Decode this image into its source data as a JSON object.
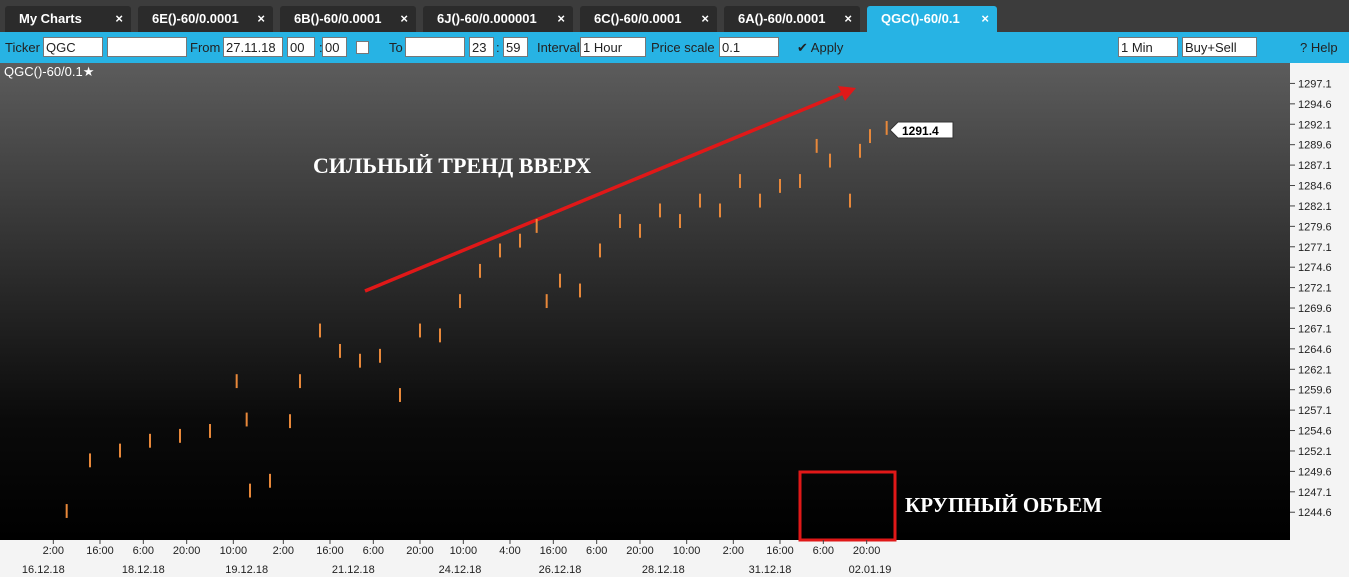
{
  "tabs": [
    "My Charts",
    "6E()-60/0.0001",
    "6B()-60/0.0001",
    "6J()-60/0.000001",
    "6C()-60/0.0001",
    "6A()-60/0.0001",
    "QGC()-60/0.1"
  ],
  "toolbar": {
    "ticker_label": "Ticker",
    "ticker": "QGC",
    "from_label": "From",
    "from_date": "27.11.18",
    "from_hour": "00",
    "from_min": "00",
    "sep": ":",
    "to_label": "To",
    "to_hour": "23",
    "to_min": "59",
    "interval_label": "Interval",
    "interval": "1 Hour",
    "price_scale_label": "Price scale",
    "price_scale": "0.1",
    "apply": "Apply",
    "timeframe": "1 Min",
    "side": "Buy+Sell",
    "help": "Help"
  },
  "chart_data": {
    "type": "ohlc",
    "title": "QGC()-60/0.1★",
    "color": "#e8883a",
    "x": [
      20,
      27,
      36,
      45,
      54,
      63,
      71,
      74,
      75,
      81,
      87,
      90,
      96,
      102,
      108,
      114,
      120,
      126,
      132,
      138,
      144,
      150,
      156,
      161,
      164,
      168,
      174,
      180,
      186,
      192,
      198,
      204,
      210,
      216,
      222,
      228,
      234,
      240,
      245,
      249,
      255,
      258,
      261,
      266
    ],
    "high": [
      1245.6,
      1251.8,
      1253,
      1254.2,
      1254.8,
      1255.4,
      1261.5,
      1256.8,
      1248.1,
      1249.3,
      1256.6,
      1261.5,
      1267.7,
      1265.2,
      1264,
      1264.6,
      1259.8,
      1267.7,
      1267.1,
      1271.3,
      1275,
      1277.5,
      1278.7,
      1280.5,
      1271.3,
      1273.8,
      1272.6,
      1277.5,
      1281.1,
      1279.9,
      1282.4,
      1281.1,
      1283.6,
      1282.4,
      1286,
      1283.6,
      1285.4,
      1286,
      1290.3,
      1288.5,
      1283.6,
      1289.7,
      1291.5,
      1292.5
    ],
    "low": [
      1243.9,
      1250.1,
      1251.3,
      1252.5,
      1253.1,
      1253.7,
      1259.8,
      1255.1,
      1246.4,
      1247.6,
      1254.9,
      1259.8,
      1266,
      1263.5,
      1262.3,
      1262.9,
      1258.1,
      1266,
      1265.4,
      1269.6,
      1273.3,
      1275.8,
      1277,
      1278.8,
      1269.6,
      1272.1,
      1270.9,
      1275.8,
      1279.4,
      1278.2,
      1280.7,
      1279.4,
      1281.9,
      1280.7,
      1284.3,
      1281.9,
      1283.7,
      1284.3,
      1288.6,
      1286.8,
      1281.9,
      1288,
      1289.8,
      1290.8
    ],
    "last_price": 1291.4,
    "xlim": [
      0,
      387
    ],
    "ylim": [
      1241.2,
      1299.6
    ],
    "yticks": [
      1297.1,
      1294.6,
      1292.1,
      1289.6,
      1287.1,
      1284.6,
      1282.1,
      1279.6,
      1277.1,
      1274.6,
      1272.1,
      1269.6,
      1267.1,
      1264.6,
      1262.1,
      1259.6,
      1257.1,
      1254.6,
      1252.1,
      1249.6,
      1247.1,
      1244.6
    ],
    "xticks": [
      {
        "value": 16,
        "label": "2:00"
      },
      {
        "value": 30,
        "label": "16:00"
      },
      {
        "value": 43,
        "label": "6:00"
      },
      {
        "value": 56,
        "label": "20:00"
      },
      {
        "value": 70,
        "label": "10:00"
      },
      {
        "value": 85,
        "label": "2:00"
      },
      {
        "value": 99,
        "label": "16:00"
      },
      {
        "value": 112,
        "label": "6:00"
      },
      {
        "value": 126,
        "label": "20:00"
      },
      {
        "value": 139,
        "label": "10:00"
      },
      {
        "value": 153,
        "label": "4:00"
      },
      {
        "value": 166,
        "label": "16:00"
      },
      {
        "value": 179,
        "label": "6:00"
      },
      {
        "value": 192,
        "label": "20:00"
      },
      {
        "value": 206,
        "label": "10:00"
      },
      {
        "value": 220,
        "label": "2:00"
      },
      {
        "value": 234,
        "label": "16:00"
      },
      {
        "value": 247,
        "label": "6:00"
      },
      {
        "value": 260,
        "label": "20:00"
      }
    ],
    "date_ticks": [
      {
        "value": 13,
        "label": "16.12.18"
      },
      {
        "value": 43,
        "label": "18.12.18"
      },
      {
        "value": 74,
        "label": "19.12.18"
      },
      {
        "value": 106,
        "label": "21.12.18"
      },
      {
        "value": 138,
        "label": "24.12.18"
      },
      {
        "value": 168,
        "label": "26.12.18"
      },
      {
        "value": 199,
        "label": "28.12.18"
      },
      {
        "value": 231,
        "label": "31.12.18"
      },
      {
        "value": 261,
        "label": "02.01.19"
      }
    ],
    "annotations": [
      "СИЛЬНЫЙ ТРЕНД ВВЕРХ",
      "КРУПНЫЙ ОБЪЕМ"
    ]
  }
}
